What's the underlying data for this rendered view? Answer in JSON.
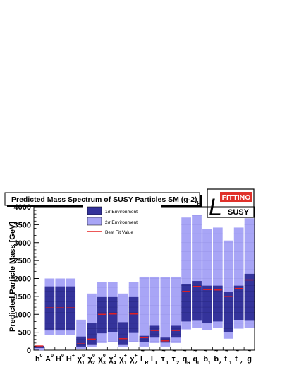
{
  "chart_data": {
    "type": "bar",
    "title": "Predicted Mass Spectrum of SUSY Particles SM (g-2)",
    "title_subscript": "μ",
    "ylabel": "Predicted Particle Mass [GeV]",
    "ylim": [
      0,
      4000
    ],
    "yticks": [
      0,
      500,
      1000,
      1500,
      2000,
      2500,
      3000,
      3500,
      4000
    ],
    "grid": false,
    "legend_placement": "top-center",
    "logo": {
      "text": "FITTINO",
      "subtext": "SUSY"
    },
    "legend": [
      {
        "key": "sigma1",
        "label": "1σ Environment",
        "color": "#34339b"
      },
      {
        "key": "sigma2",
        "label": "2σ Environment",
        "color": "#a8a5f6"
      },
      {
        "key": "best",
        "label": "Best Fit Value",
        "color": "#e62020"
      }
    ],
    "categories": [
      {
        "base": "h",
        "sup": "0",
        "tilde": false,
        "sub": ""
      },
      {
        "base": "A",
        "sup": "0",
        "tilde": false,
        "sub": ""
      },
      {
        "base": "H",
        "sup": "0",
        "tilde": false,
        "sub": ""
      },
      {
        "base": "H",
        "sup": "+",
        "tilde": false,
        "sub": ""
      },
      {
        "base": "χ",
        "sup": "0",
        "tilde": false,
        "sub": "1"
      },
      {
        "base": "χ",
        "sup": "0",
        "tilde": false,
        "sub": "2"
      },
      {
        "base": "χ",
        "sup": "0",
        "tilde": false,
        "sub": "3"
      },
      {
        "base": "χ",
        "sup": "0",
        "tilde": false,
        "sub": "4"
      },
      {
        "base": "χ",
        "sup": "+",
        "tilde": false,
        "sub": "1"
      },
      {
        "base": "χ",
        "sup": "+",
        "tilde": false,
        "sub": "2"
      },
      {
        "base": "l",
        "sup": "",
        "tilde": true,
        "sub": "R"
      },
      {
        "base": "l",
        "sup": "",
        "tilde": true,
        "sub": "L"
      },
      {
        "base": "τ",
        "sup": "",
        "tilde": true,
        "sub": "1"
      },
      {
        "base": "τ",
        "sup": "",
        "tilde": true,
        "sub": "2"
      },
      {
        "base": "q",
        "sup": "",
        "tilde": true,
        "sub": "R"
      },
      {
        "base": "q",
        "sup": "",
        "tilde": true,
        "sub": "L"
      },
      {
        "base": "b",
        "sup": "",
        "tilde": true,
        "sub": "1"
      },
      {
        "base": "b",
        "sup": "",
        "tilde": true,
        "sub": "2"
      },
      {
        "base": "t",
        "sup": "",
        "tilde": true,
        "sub": "1"
      },
      {
        "base": "t",
        "sup": "",
        "tilde": true,
        "sub": "2"
      },
      {
        "base": "g",
        "sup": "",
        "tilde": true,
        "sub": ""
      }
    ],
    "series": [
      {
        "name": "2σ Environment",
        "low": [
          0,
          420,
          420,
          420,
          40,
          80,
          200,
          220,
          80,
          230,
          100,
          200,
          100,
          200,
          580,
          620,
          560,
          620,
          320,
          600,
          620
        ],
        "high": [
          120,
          2000,
          2000,
          2000,
          850,
          1580,
          1900,
          1900,
          1580,
          1900,
          2050,
          2050,
          2030,
          2050,
          3700,
          3780,
          3380,
          3420,
          3060,
          3420,
          3680
        ]
      },
      {
        "name": "1σ Environment",
        "low": [
          60,
          550,
          550,
          550,
          100,
          150,
          470,
          500,
          150,
          480,
          230,
          350,
          210,
          350,
          800,
          820,
          760,
          800,
          500,
          840,
          820
        ],
        "high": [
          120,
          1780,
          1780,
          1780,
          380,
          750,
          1480,
          1480,
          780,
          1480,
          400,
          680,
          350,
          680,
          1850,
          1930,
          1800,
          1800,
          1620,
          1800,
          2130
        ]
      },
      {
        "name": "Best Fit Value",
        "values": [
          118,
          1180,
          1180,
          1180,
          175,
          310,
          1000,
          1010,
          320,
          1010,
          350,
          550,
          260,
          550,
          1640,
          1780,
          1690,
          1680,
          1500,
          1720,
          1960
        ]
      }
    ]
  }
}
